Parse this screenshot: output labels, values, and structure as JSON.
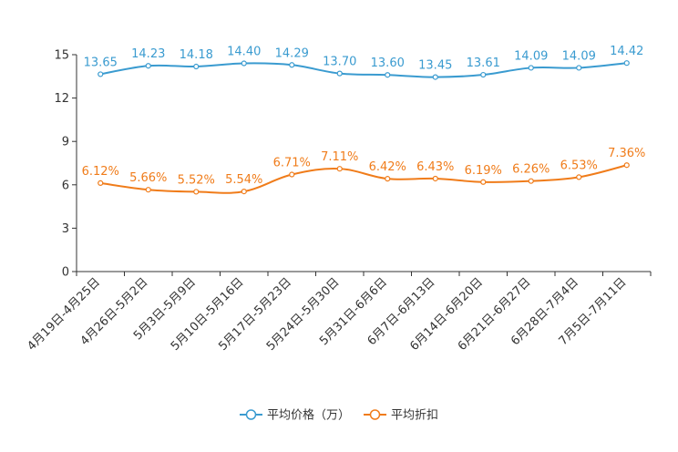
{
  "chart_data": {
    "type": "line",
    "title": "",
    "xlabel": "",
    "ylabel": "",
    "ylim": [
      0,
      15
    ],
    "yticks": [
      0,
      3,
      6,
      9,
      12,
      15
    ],
    "grid": false,
    "legend_position": "bottom-center",
    "categories": [
      "4月19日-4月25日",
      "4月26日-5月2日",
      "5月3日-5月9日",
      "5月10日-5月16日",
      "5月17日-5月23日",
      "5月24日-5月30日",
      "5月31日-6月6日",
      "6月7日-6月13日",
      "6月14日-6月20日",
      "6月21日-6月27日",
      "6月28日-7月4日",
      "7月5日-7月11日"
    ],
    "series": [
      {
        "name": "平均价格（万）",
        "color": "#3a9bd0",
        "values": [
          13.65,
          14.23,
          14.18,
          14.4,
          14.29,
          13.7,
          13.6,
          13.45,
          13.61,
          14.09,
          14.09,
          14.42
        ],
        "labels": [
          "13.65",
          "14.23",
          "14.18",
          "14.40",
          "14.29",
          "13.70",
          "13.60",
          "13.45",
          "13.61",
          "14.09",
          "14.09",
          "14.42"
        ]
      },
      {
        "name": "平均折扣",
        "color": "#f07c1a",
        "values": [
          6.12,
          5.66,
          5.52,
          5.54,
          6.71,
          7.11,
          6.42,
          6.43,
          6.19,
          6.26,
          6.53,
          7.36
        ],
        "labels": [
          "6.12%",
          "5.66%",
          "5.52%",
          "5.54%",
          "6.71%",
          "7.11%",
          "6.42%",
          "6.43%",
          "6.19%",
          "6.26%",
          "6.53%",
          "7.36%"
        ]
      }
    ]
  }
}
